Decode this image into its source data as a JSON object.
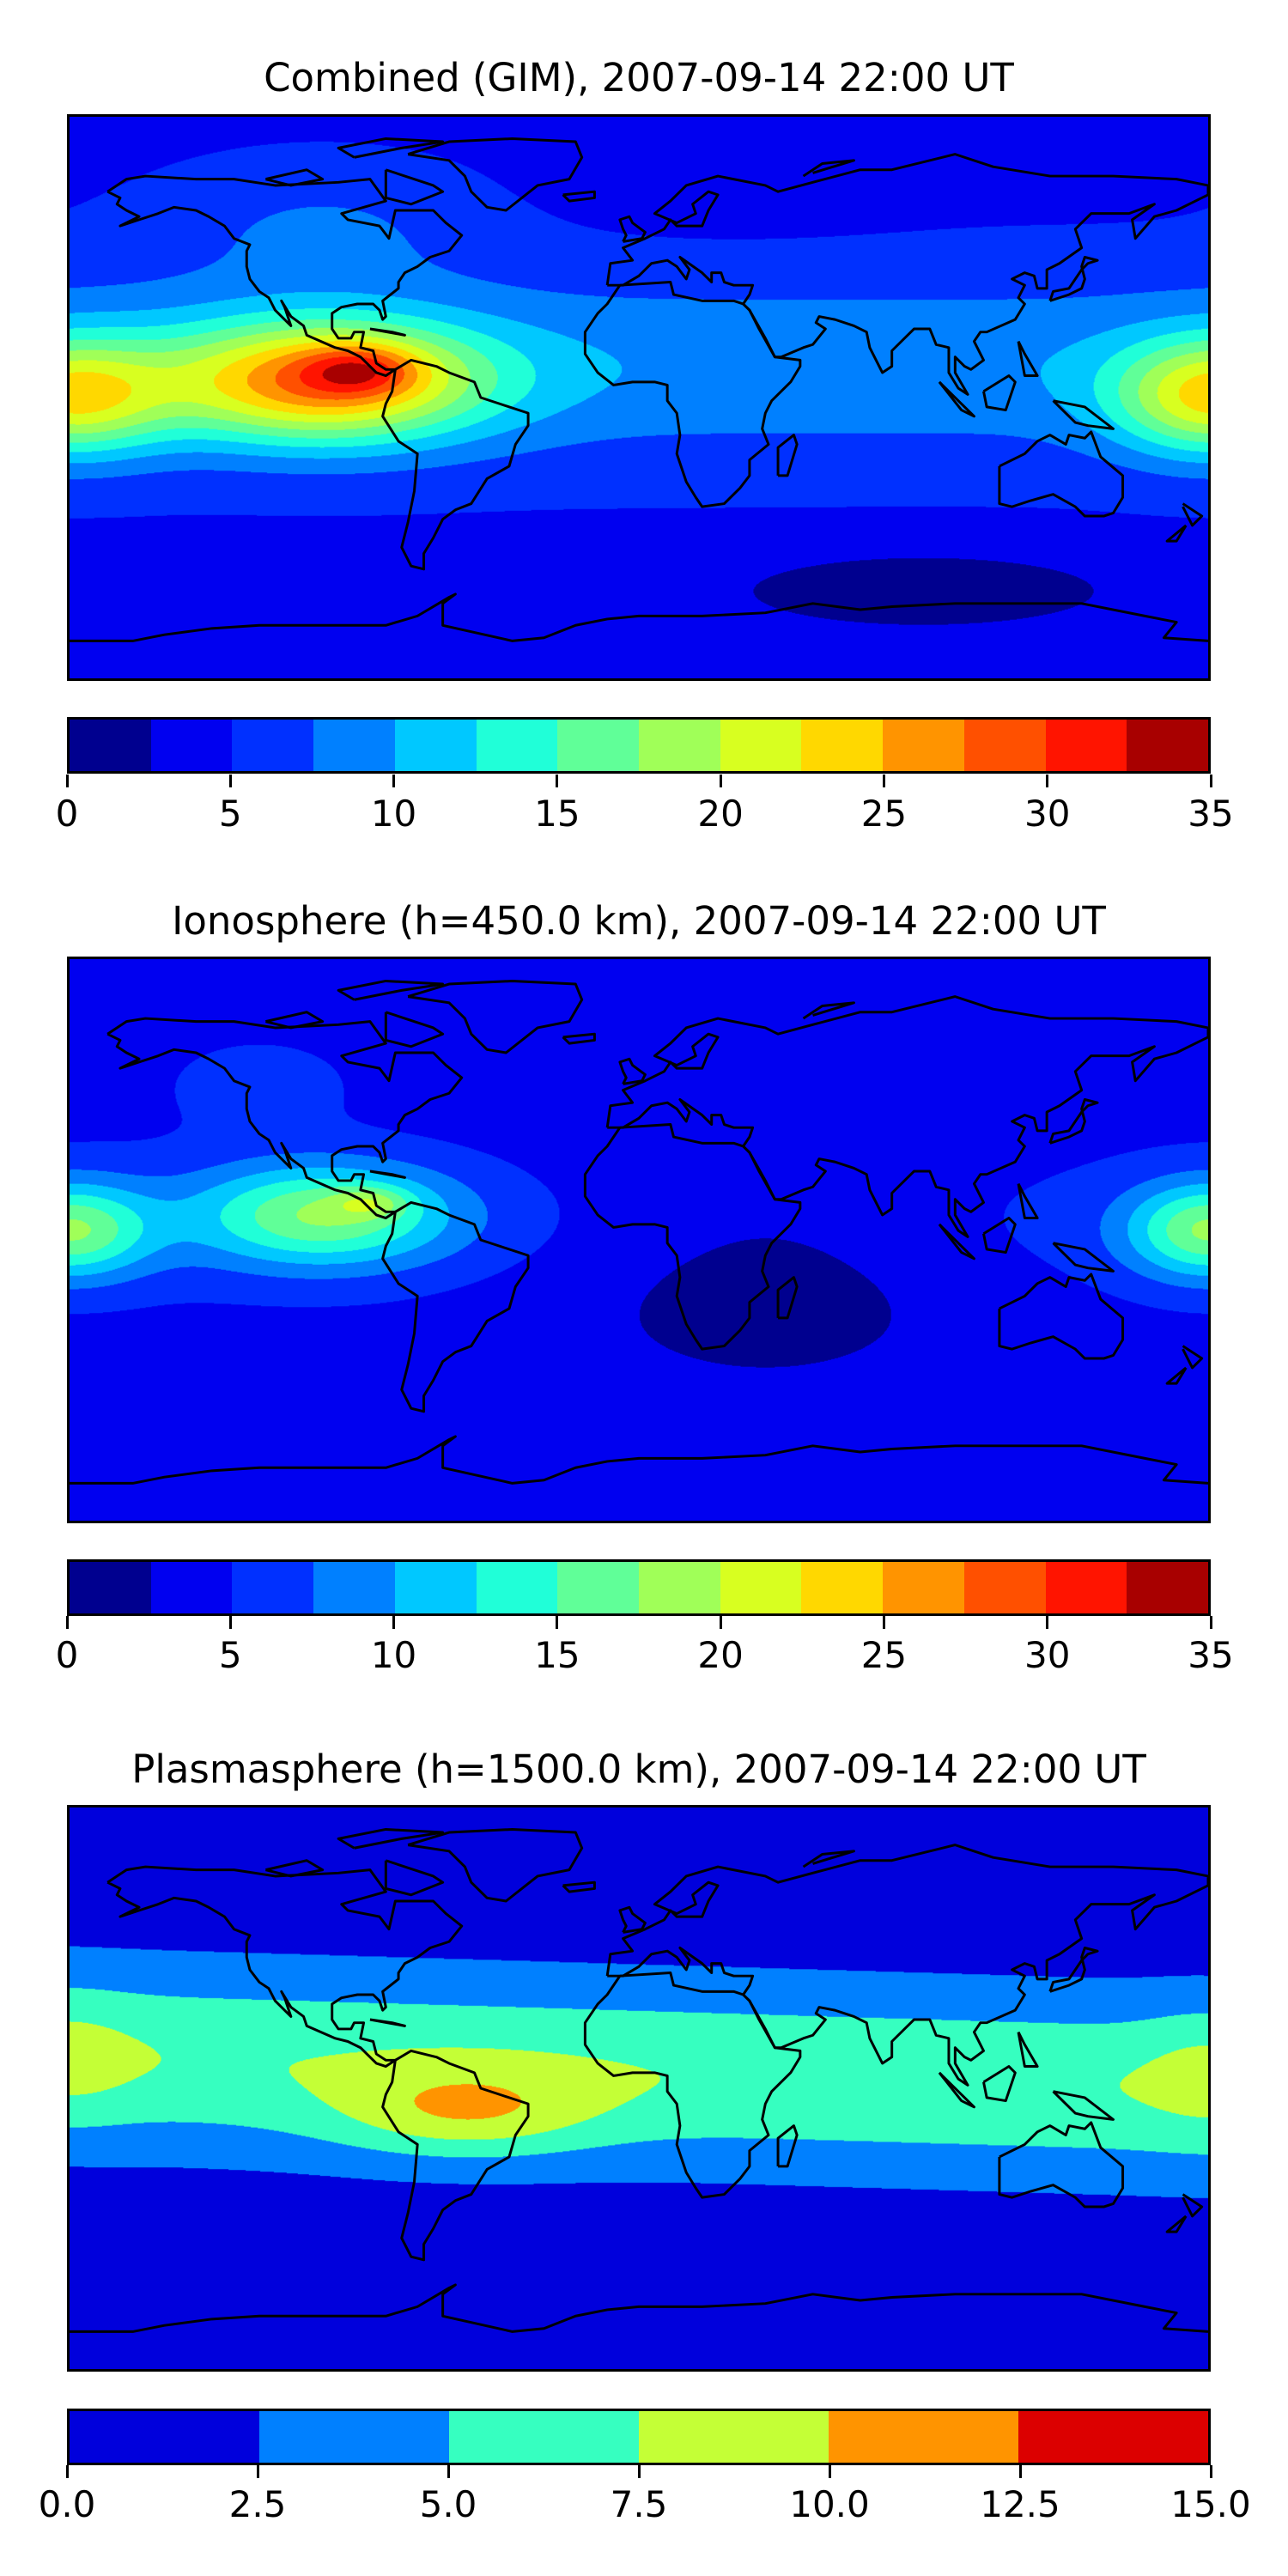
{
  "panels": [
    {
      "title": "Combined (GIM), 2007-09-14 22:00 UT",
      "colorbar": {
        "ticks": [
          "0",
          "5",
          "10",
          "15",
          "20",
          "25",
          "30",
          "35"
        ],
        "levels": [
          0,
          2.5,
          5,
          7.5,
          10,
          12.5,
          15,
          17.5,
          20,
          22.5,
          25,
          27.5,
          30,
          32.5,
          35
        ],
        "colors": [
          "#00008f",
          "#0000f0",
          "#0030ff",
          "#0080ff",
          "#00c8ff",
          "#20ffd8",
          "#60ff98",
          "#a0ff58",
          "#d8ff20",
          "#ffd800",
          "#ff9400",
          "#ff5000",
          "#ff1400",
          "#a80000"
        ]
      }
    },
    {
      "title": "Ionosphere  (h=450.0 km), 2007-09-14 22:00 UT",
      "colorbar": {
        "ticks": [
          "0",
          "5",
          "10",
          "15",
          "20",
          "25",
          "30",
          "35"
        ],
        "levels": [
          0,
          2.5,
          5,
          7.5,
          10,
          12.5,
          15,
          17.5,
          20,
          22.5,
          25,
          27.5,
          30,
          32.5,
          35
        ],
        "colors": [
          "#00008f",
          "#0000f0",
          "#0030ff",
          "#0080ff",
          "#00c8ff",
          "#20ffd8",
          "#60ff98",
          "#a0ff58",
          "#d8ff20",
          "#ffd800",
          "#ff9400",
          "#ff5000",
          "#ff1400",
          "#a80000"
        ]
      }
    },
    {
      "title": "Plasmasphere (h=1500.0 km), 2007-09-14 22:00 UT",
      "colorbar": {
        "ticks": [
          "0.0",
          "2.5",
          "5.0",
          "7.5",
          "10.0",
          "12.5",
          "15.0"
        ],
        "levels": [
          0,
          2.5,
          5,
          7.5,
          10,
          12.5,
          15
        ],
        "colors": [
          "#0000dc",
          "#0080ff",
          "#36ffc0",
          "#c4ff36",
          "#ff9400",
          "#dc0000"
        ]
      }
    }
  ]
}
